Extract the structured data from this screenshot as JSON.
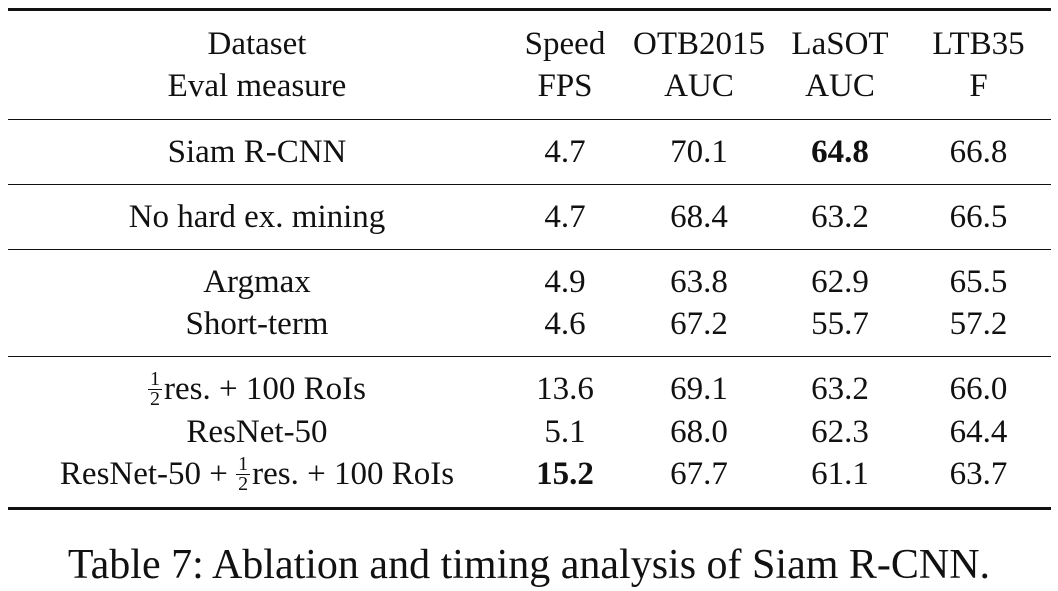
{
  "table": {
    "header": {
      "top": [
        "Dataset",
        "Speed",
        "OTB2015",
        "LaSOT",
        "LTB35"
      ],
      "bottom": [
        "Eval measure",
        "FPS",
        "AUC",
        "AUC",
        "F"
      ]
    },
    "groups": [
      {
        "rows": [
          {
            "method": "Siam R-CNN",
            "speed": "4.7",
            "otb": "70.1",
            "lasot": "64.8",
            "ltb": "66.8"
          }
        ]
      },
      {
        "rows": [
          {
            "method": "No hard ex. mining",
            "speed": "4.7",
            "otb": "68.4",
            "lasot": "63.2",
            "ltb": "66.5"
          }
        ]
      },
      {
        "rows": [
          {
            "method": "Argmax",
            "speed": "4.9",
            "otb": "63.8",
            "lasot": "62.9",
            "ltb": "65.5"
          },
          {
            "method": "Short-term",
            "speed": "4.6",
            "otb": "67.2",
            "lasot": "55.7",
            "ltb": "57.2"
          }
        ]
      },
      {
        "rows": [
          {
            "method_frac_num": "1",
            "method_frac_den": "2",
            "method_suffix": "res. + 100 RoIs",
            "speed": "13.6",
            "otb": "69.1",
            "lasot": "63.2",
            "ltb": "66.0"
          },
          {
            "method": "ResNet-50",
            "speed": "5.1",
            "otb": "68.0",
            "lasot": "62.3",
            "ltb": "64.4"
          },
          {
            "method_prefix": "ResNet-50 + ",
            "method_frac_num": "1",
            "method_frac_den": "2",
            "method_suffix": "res. + 100 RoIs",
            "speed": "15.2",
            "otb": "67.7",
            "lasot": "61.1",
            "ltb": "63.7"
          }
        ]
      }
    ]
  },
  "caption": "Table 7: Ablation and timing analysis of Siam R-CNN."
}
